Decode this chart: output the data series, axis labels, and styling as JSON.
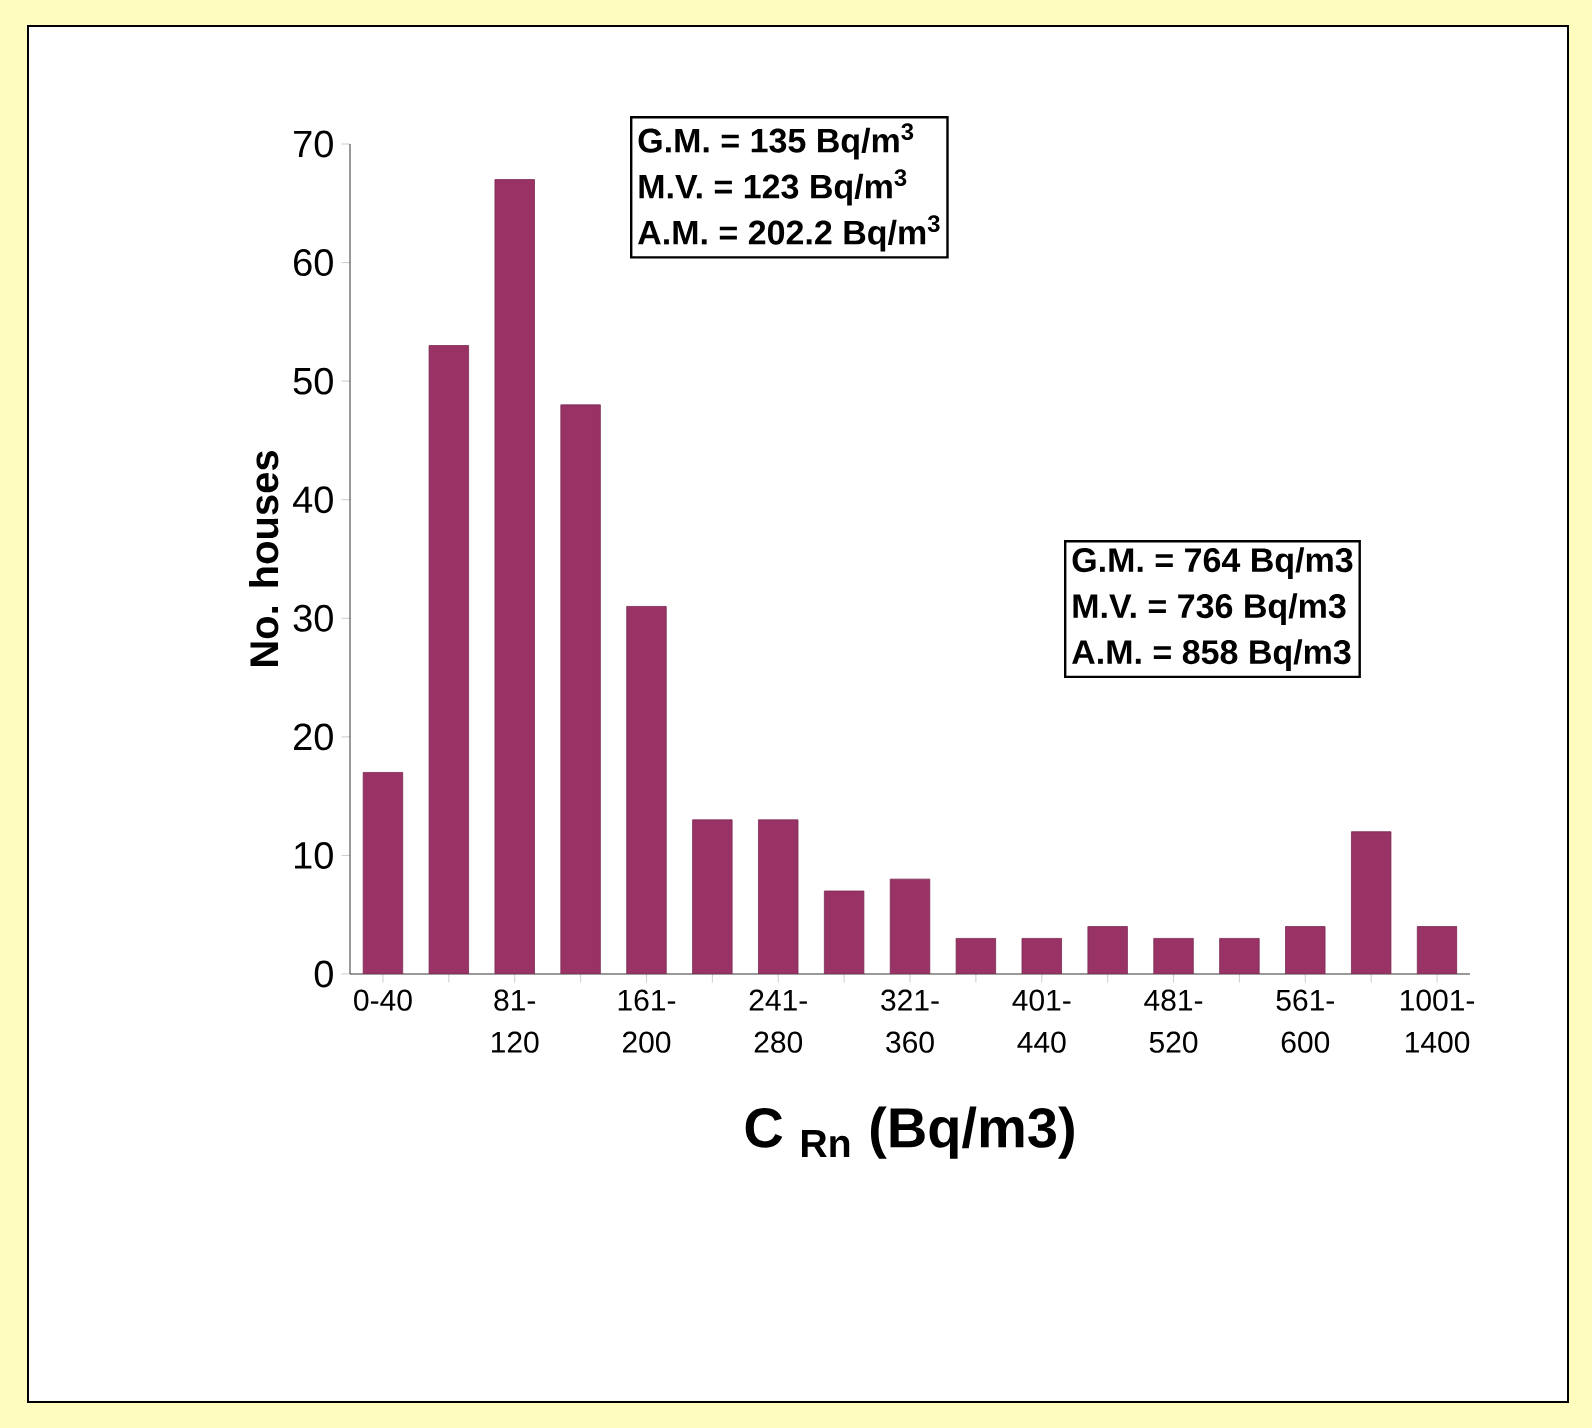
{
  "chart_data": {
    "type": "bar",
    "xlabel": "C $_{Rn}$ (Bq/m3)",
    "ylabel": "No. houses",
    "categories": [
      "0-40",
      null,
      "81-120",
      null,
      "161-200",
      null,
      "241-280",
      null,
      "321-360",
      null,
      "401-440",
      null,
      "481-520",
      null,
      "561-600",
      null,
      "1001-1400"
    ],
    "values": [
      17,
      53,
      67,
      48,
      31,
      13,
      13,
      7,
      8,
      3,
      3,
      4,
      3,
      3,
      4,
      12,
      4
    ],
    "color": "#993366",
    "ylim": [
      0,
      70
    ],
    "yticks": [
      0,
      10,
      20,
      30,
      40,
      50,
      60,
      70
    ],
    "annotations": [
      "G.M. = 135 Bq/m$^{3}$",
      "M.V. = 123 Bq/m$^{3}$",
      "A.M. = 202.2 Bq/m$^{3}$",
      "G.M. = 764 Bq/m3",
      "M.V. = 736 Bq/m3",
      "A.M. = 858 Bq/m3"
    ]
  }
}
